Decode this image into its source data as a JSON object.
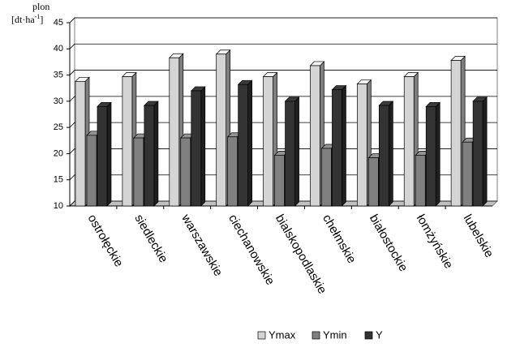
{
  "chart_data": {
    "type": "bar3d",
    "y_label": "plon",
    "y_unit": {
      "base": "[dt·ha",
      "sup": "-1",
      "end": "]"
    },
    "categories": [
      "ostrołęckie",
      "siedleckie",
      "warszawskie",
      "ciechanowskie",
      "bialskopodlaskie",
      "chełmskie",
      "białostockie",
      "łomżyńskie",
      "lubelskie"
    ],
    "series": [
      {
        "name": "Ymax",
        "color": "#d4d4d4",
        "values": [
          33.8,
          34.7,
          38.3,
          39,
          34.7,
          36.8,
          33.3,
          34.7,
          37.8
        ]
      },
      {
        "name": "Ymin",
        "color": "#808080",
        "values": [
          23.5,
          23,
          23,
          23.2,
          19.7,
          21,
          19.2,
          19.7,
          22.2
        ]
      },
      {
        "name": "Y",
        "color": "#333333",
        "values": [
          29,
          29.2,
          32,
          33.2,
          30,
          32.2,
          29.2,
          29,
          30
        ]
      }
    ],
    "ylim": [
      10,
      45
    ],
    "yticks": [
      10,
      15,
      20,
      25,
      30,
      35,
      40,
      45
    ],
    "grid": true,
    "legend": "bottom"
  }
}
